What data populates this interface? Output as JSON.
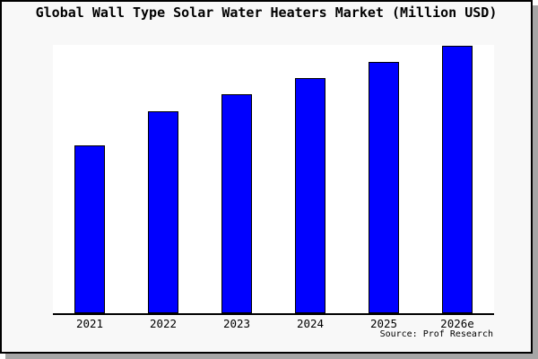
{
  "chart": {
    "title": "Global Wall Type Solar Water Heaters Market (Million USD)",
    "source": "Source: Prof Research"
  },
  "colors": {
    "bar_fill": "#0000FF",
    "bar_border": "#000000",
    "plot_background": "#FFFFFF",
    "canvas_background": "#F8F8F8",
    "frame_border": "#000000",
    "shadow": "#A6A6A6",
    "axis_line": "#000000",
    "text": "#000000"
  },
  "chart_data": {
    "type": "bar",
    "title": "Global Wall Type Solar Water Heaters Market (Million USD)",
    "categories": [
      "2021",
      "2022",
      "2023",
      "2024",
      "2025",
      "2026e"
    ],
    "values": [
      62.5,
      75.1,
      81.7,
      87.7,
      93.7,
      99.7
    ],
    "value_basis": "percent_of_plot_height (no y-axis ticks shown; values estimated from bar pixel heights)",
    "xlabel": "",
    "ylabel": "",
    "ylim": [
      0,
      100
    ],
    "grid": false,
    "legend": false,
    "y_axis_labels_shown": false,
    "annotations": [
      "Source: Prof Research"
    ]
  }
}
